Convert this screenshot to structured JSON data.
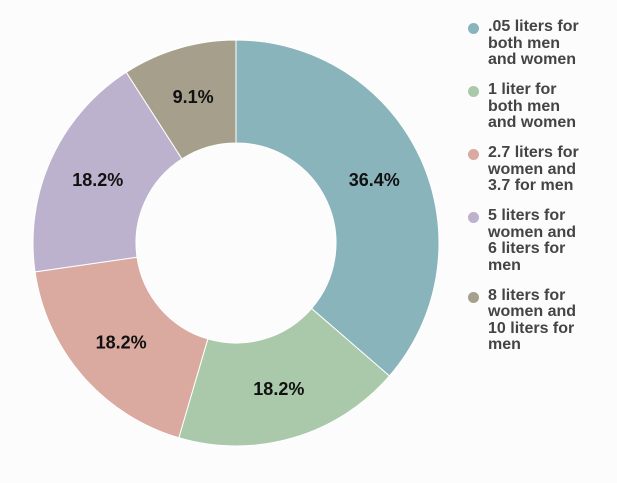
{
  "chart_data": {
    "type": "pie",
    "title": "",
    "categories": [
      ".05 liters for both men and women",
      "1 liter for both men and women",
      "2.7 liters for women and 3.7 for men",
      "5 liters for women and 6 liters for men",
      "8 liters for women and 10 liters for men"
    ],
    "values": [
      36.4,
      18.2,
      18.2,
      18.2,
      9.1
    ],
    "value_labels": [
      "36.4%",
      "18.2%",
      "18.2%",
      "18.2%",
      "9.1%"
    ],
    "colors": [
      "#8ab4bc",
      "#a9c9aa",
      "#daa9a0",
      "#bdb2cd",
      "#a59f8c"
    ],
    "legend_position": "right",
    "legend_entries": [
      ".05 liters for\nboth men\nand women",
      "1 liter for\nboth men\nand women",
      "2.7 liters for\nwomen and\n3.7 for men",
      "5 liters for\nwomen and\n6 liters for\nmen",
      "8 liters for\nwomen and\n10 liters for\nmen"
    ]
  }
}
